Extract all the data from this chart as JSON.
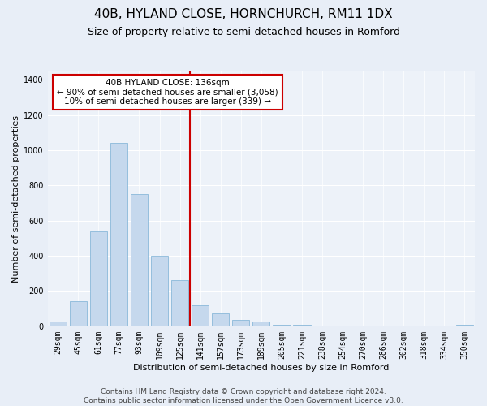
{
  "title": "40B, HYLAND CLOSE, HORNCHURCH, RM11 1DX",
  "subtitle": "Size of property relative to semi-detached houses in Romford",
  "xlabel": "Distribution of semi-detached houses by size in Romford",
  "ylabel": "Number of semi-detached properties",
  "footer_line1": "Contains HM Land Registry data © Crown copyright and database right 2024.",
  "footer_line2": "Contains public sector information licensed under the Open Government Licence v3.0.",
  "categories": [
    "29sqm",
    "45sqm",
    "61sqm",
    "77sqm",
    "93sqm",
    "109sqm",
    "125sqm",
    "141sqm",
    "157sqm",
    "173sqm",
    "189sqm",
    "205sqm",
    "221sqm",
    "238sqm",
    "254sqm",
    "270sqm",
    "286sqm",
    "302sqm",
    "318sqm",
    "334sqm",
    "350sqm"
  ],
  "bar_values": [
    25,
    140,
    540,
    1040,
    750,
    400,
    260,
    120,
    75,
    35,
    25,
    10,
    8,
    2,
    1,
    0,
    0,
    0,
    0,
    0,
    8
  ],
  "bar_color": "#c5d8ed",
  "bar_edge_color": "#7aafd4",
  "marker_bin_index": 7,
  "marker_color": "#cc0000",
  "annotation_text": "40B HYLAND CLOSE: 136sqm\n← 90% of semi-detached houses are smaller (3,058)\n10% of semi-detached houses are larger (339) →",
  "annotation_box_color": "#ffffff",
  "annotation_box_edge": "#cc0000",
  "ylim": [
    0,
    1450
  ],
  "yticks": [
    0,
    200,
    400,
    600,
    800,
    1000,
    1200,
    1400
  ],
  "bg_color": "#e8eef7",
  "plot_bg_color": "#edf2f9",
  "title_fontsize": 11,
  "subtitle_fontsize": 9,
  "axis_label_fontsize": 8,
  "tick_fontsize": 7,
  "footer_fontsize": 6.5,
  "annotation_fontsize": 7.5
}
